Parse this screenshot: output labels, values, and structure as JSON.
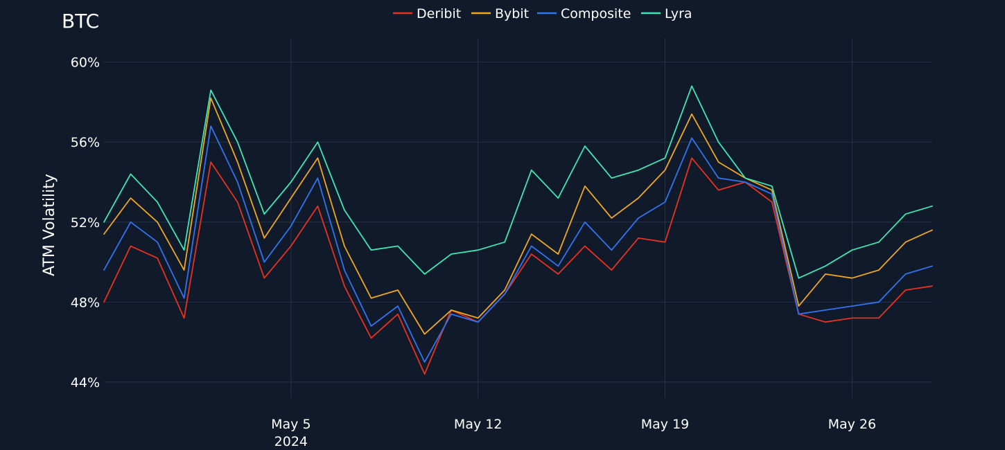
{
  "chart_data": {
    "type": "line",
    "title": "BTC",
    "xlabel": "",
    "ylabel": "ATM Volatility",
    "ylim": [
      43.2,
      61.2
    ],
    "y_ticks": [
      44,
      48,
      52,
      56,
      60
    ],
    "y_tick_labels": [
      "44%",
      "48%",
      "52%",
      "56%",
      "60%"
    ],
    "x_ticks": [
      {
        "date": "2024-05-05",
        "label": "May 5",
        "sublabel": "2024"
      },
      {
        "date": "2024-05-12",
        "label": "May 12",
        "sublabel": ""
      },
      {
        "date": "2024-05-19",
        "label": "May 19",
        "sublabel": ""
      },
      {
        "date": "2024-05-26",
        "label": "May 26",
        "sublabel": ""
      }
    ],
    "xlim": [
      "2024-04-28",
      "2024-05-29T00:00"
    ],
    "grid": true,
    "legend": "top-center",
    "x": [
      "2024-04-28",
      "2024-04-29",
      "2024-04-30",
      "2024-05-01",
      "2024-05-02",
      "2024-05-03",
      "2024-05-04",
      "2024-05-05",
      "2024-05-06",
      "2024-05-07",
      "2024-05-08",
      "2024-05-09",
      "2024-05-10",
      "2024-05-11",
      "2024-05-12",
      "2024-05-13",
      "2024-05-14",
      "2024-05-15",
      "2024-05-16",
      "2024-05-17",
      "2024-05-18",
      "2024-05-19",
      "2024-05-20",
      "2024-05-21",
      "2024-05-22",
      "2024-05-23",
      "2024-05-24",
      "2024-05-25",
      "2024-05-26",
      "2024-05-27",
      "2024-05-28",
      "2024-05-29"
    ],
    "series": [
      {
        "name": "Deribit",
        "color": "#e8321e",
        "values": [
          48.0,
          50.8,
          50.2,
          47.2,
          55.0,
          53.0,
          49.2,
          50.8,
          52.8,
          48.8,
          46.2,
          47.4,
          44.4,
          47.6,
          47.0,
          48.4,
          50.4,
          49.4,
          50.8,
          49.6,
          51.2,
          51.0,
          55.2,
          53.6,
          54.0,
          53.0,
          47.4,
          47.0,
          47.2,
          47.2,
          48.6,
          48.8
        ]
      },
      {
        "name": "Bybit",
        "color": "#f0a81e",
        "values": [
          51.4,
          53.2,
          52.0,
          49.6,
          58.2,
          55.0,
          51.2,
          53.2,
          55.2,
          50.8,
          48.2,
          48.6,
          46.4,
          47.6,
          47.2,
          48.6,
          51.4,
          50.4,
          53.8,
          52.2,
          53.2,
          54.6,
          57.4,
          55.0,
          54.2,
          53.6,
          47.8,
          49.4,
          49.2,
          49.6,
          51.0,
          51.6
        ]
      },
      {
        "name": "Composite",
        "color": "#2f74f0",
        "values": [
          49.6,
          52.0,
          51.0,
          48.2,
          56.8,
          54.0,
          50.0,
          51.8,
          54.2,
          49.6,
          46.8,
          47.8,
          45.0,
          47.4,
          47.0,
          48.4,
          50.8,
          49.8,
          52.0,
          50.6,
          52.2,
          53.0,
          56.2,
          54.2,
          54.0,
          53.4,
          47.4,
          47.6,
          47.8,
          48.0,
          49.4,
          49.8
        ]
      },
      {
        "name": "Lyra",
        "color": "#3ee8b4",
        "values": [
          52.0,
          54.4,
          53.0,
          50.6,
          58.6,
          56.0,
          52.4,
          54.0,
          56.0,
          52.6,
          50.6,
          50.8,
          49.4,
          50.4,
          50.6,
          51.0,
          54.6,
          53.2,
          55.8,
          54.2,
          54.6,
          55.2,
          58.8,
          56.0,
          54.2,
          53.8,
          49.2,
          49.8,
          50.6,
          51.0,
          52.4,
          52.8
        ]
      }
    ]
  }
}
